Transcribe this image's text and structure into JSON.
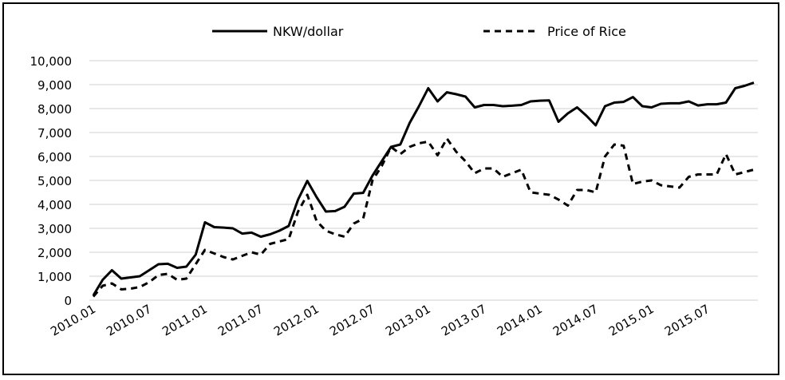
{
  "chart_data": {
    "type": "line",
    "title": "",
    "xlabel": "",
    "ylabel": "",
    "ylim": [
      0,
      10000
    ],
    "y_ticks": [
      "0",
      "1,000",
      "2,000",
      "3,000",
      "4,000",
      "5,000",
      "6,000",
      "7,000",
      "8,000",
      "9,000",
      "10,000"
    ],
    "x_ticks": [
      "2010.01",
      "2010.07",
      "2011.01",
      "2011.07",
      "2012.01",
      "2012.07",
      "2013.01",
      "2013.07",
      "2014.01",
      "2014.07",
      "2015.01",
      "2015.07"
    ],
    "grid": "horizontal",
    "legend_position": "top",
    "series": [
      {
        "name": "NKW/dollar",
        "style": "solid",
        "color": "#000000",
        "points": [
          [
            0,
            200
          ],
          [
            1,
            850
          ],
          [
            2,
            1250
          ],
          [
            3,
            900
          ],
          [
            4,
            950
          ],
          [
            5,
            1000
          ],
          [
            6,
            1250
          ],
          [
            7,
            1500
          ],
          [
            8,
            1520
          ],
          [
            9,
            1350
          ],
          [
            10,
            1400
          ],
          [
            11,
            1900
          ],
          [
            12,
            3250
          ],
          [
            13,
            3050
          ],
          [
            14,
            3030
          ],
          [
            15,
            3000
          ],
          [
            16,
            2780
          ],
          [
            17,
            2820
          ],
          [
            18,
            2650
          ],
          [
            19,
            2750
          ],
          [
            20,
            2900
          ],
          [
            21,
            3100
          ],
          [
            22,
            4200
          ],
          [
            23,
            4980
          ],
          [
            24,
            4300
          ],
          [
            25,
            3700
          ],
          [
            26,
            3720
          ],
          [
            27,
            3900
          ],
          [
            28,
            4450
          ],
          [
            29,
            4480
          ],
          [
            30,
            5200
          ],
          [
            31,
            5800
          ],
          [
            32,
            6400
          ],
          [
            33,
            6500
          ],
          [
            34,
            7400
          ],
          [
            35,
            8100
          ],
          [
            36,
            8850
          ],
          [
            37,
            8300
          ],
          [
            38,
            8680
          ],
          [
            39,
            8600
          ],
          [
            40,
            8500
          ],
          [
            41,
            8050
          ],
          [
            42,
            8150
          ],
          [
            43,
            8150
          ],
          [
            44,
            8100
          ],
          [
            45,
            8120
          ],
          [
            46,
            8150
          ],
          [
            47,
            8300
          ],
          [
            48,
            8330
          ],
          [
            49,
            8340
          ],
          [
            50,
            7450
          ],
          [
            51,
            7800
          ],
          [
            52,
            8050
          ],
          [
            53,
            7700
          ],
          [
            54,
            7300
          ],
          [
            55,
            8100
          ],
          [
            56,
            8250
          ],
          [
            57,
            8280
          ],
          [
            58,
            8480
          ],
          [
            59,
            8100
          ],
          [
            60,
            8050
          ],
          [
            61,
            8200
          ],
          [
            62,
            8220
          ],
          [
            63,
            8220
          ],
          [
            64,
            8300
          ],
          [
            65,
            8130
          ],
          [
            66,
            8180
          ],
          [
            67,
            8180
          ],
          [
            68,
            8250
          ],
          [
            69,
            8850
          ],
          [
            70,
            8950
          ],
          [
            71,
            9080
          ]
        ]
      },
      {
        "name": "Price of Rice",
        "style": "dashed",
        "color": "#000000",
        "points": [
          [
            0,
            150
          ],
          [
            1,
            600
          ],
          [
            2,
            700
          ],
          [
            3,
            450
          ],
          [
            4,
            480
          ],
          [
            5,
            550
          ],
          [
            6,
            750
          ],
          [
            7,
            1050
          ],
          [
            8,
            1100
          ],
          [
            9,
            850
          ],
          [
            10,
            900
          ],
          [
            11,
            1500
          ],
          [
            12,
            2100
          ],
          [
            13,
            1950
          ],
          [
            14,
            1800
          ],
          [
            15,
            1700
          ],
          [
            16,
            1850
          ],
          [
            17,
            2000
          ],
          [
            18,
            1900
          ],
          [
            19,
            2350
          ],
          [
            20,
            2450
          ],
          [
            21,
            2550
          ],
          [
            22,
            3700
          ],
          [
            23,
            4400
          ],
          [
            24,
            3300
          ],
          [
            25,
            2900
          ],
          [
            26,
            2750
          ],
          [
            27,
            2650
          ],
          [
            28,
            3200
          ],
          [
            29,
            3400
          ],
          [
            30,
            5000
          ],
          [
            31,
            5600
          ],
          [
            32,
            6400
          ],
          [
            33,
            6100
          ],
          [
            34,
            6400
          ],
          [
            35,
            6550
          ],
          [
            36,
            6620
          ],
          [
            37,
            6050
          ],
          [
            38,
            6750
          ],
          [
            39,
            6200
          ],
          [
            40,
            5800
          ],
          [
            41,
            5300
          ],
          [
            42,
            5500
          ],
          [
            43,
            5500
          ],
          [
            44,
            5150
          ],
          [
            45,
            5300
          ],
          [
            46,
            5450
          ],
          [
            47,
            4500
          ],
          [
            48,
            4450
          ],
          [
            49,
            4400
          ],
          [
            50,
            4200
          ],
          [
            51,
            3950
          ],
          [
            52,
            4600
          ],
          [
            53,
            4600
          ],
          [
            54,
            4500
          ],
          [
            55,
            6000
          ],
          [
            56,
            6500
          ],
          [
            57,
            6450
          ],
          [
            58,
            4850
          ],
          [
            59,
            4950
          ],
          [
            60,
            5000
          ],
          [
            61,
            4800
          ],
          [
            62,
            4750
          ],
          [
            63,
            4700
          ],
          [
            64,
            5150
          ],
          [
            65,
            5250
          ],
          [
            66,
            5250
          ],
          [
            67,
            5250
          ],
          [
            68,
            6100
          ],
          [
            69,
            5250
          ],
          [
            70,
            5350
          ],
          [
            71,
            5450
          ]
        ]
      }
    ]
  }
}
